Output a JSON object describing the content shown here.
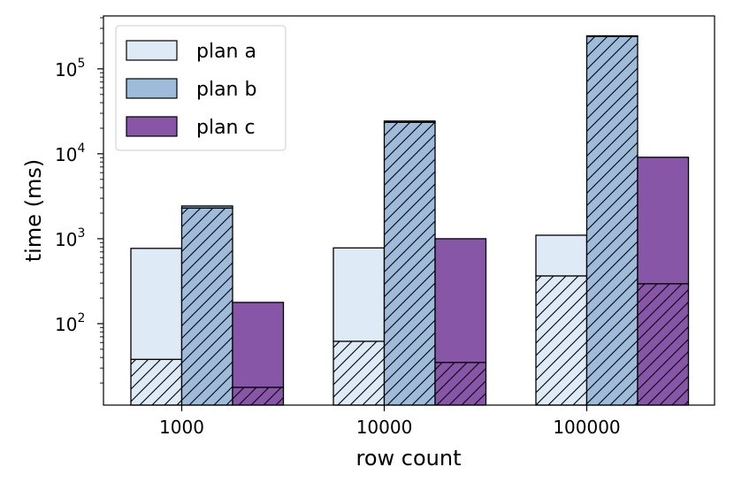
{
  "chart_data": {
    "type": "bar",
    "stacked": true,
    "yscale": "log",
    "title": "",
    "xlabel": "row count",
    "ylabel": "time (ms)",
    "ylim": [
      11,
      420000
    ],
    "categories": [
      "1000",
      "10000",
      "100000"
    ],
    "yticks": [
      {
        "value": 100,
        "base": "10",
        "exp": "2"
      },
      {
        "value": 1000,
        "base": "10",
        "exp": "3"
      },
      {
        "value": 10000,
        "base": "10",
        "exp": "4"
      },
      {
        "value": 100000,
        "base": "10",
        "exp": "5"
      }
    ],
    "series": [
      {
        "name": "plan a",
        "color": "#deebf7",
        "hatched_part": [
          38,
          62,
          365
        ],
        "total": [
          770,
          780,
          1100
        ]
      },
      {
        "name": "plan b",
        "color": "#9ebcda",
        "hatched_part": [
          2300,
          23500,
          240000
        ],
        "total": [
          2430,
          24300,
          245000
        ]
      },
      {
        "name": "plan c",
        "color": "#8856a7",
        "hatched_part": [
          17.8,
          35,
          295
        ],
        "total": [
          178,
          1000,
          9100
        ]
      }
    ],
    "legend": {
      "placement": "top-left"
    }
  }
}
